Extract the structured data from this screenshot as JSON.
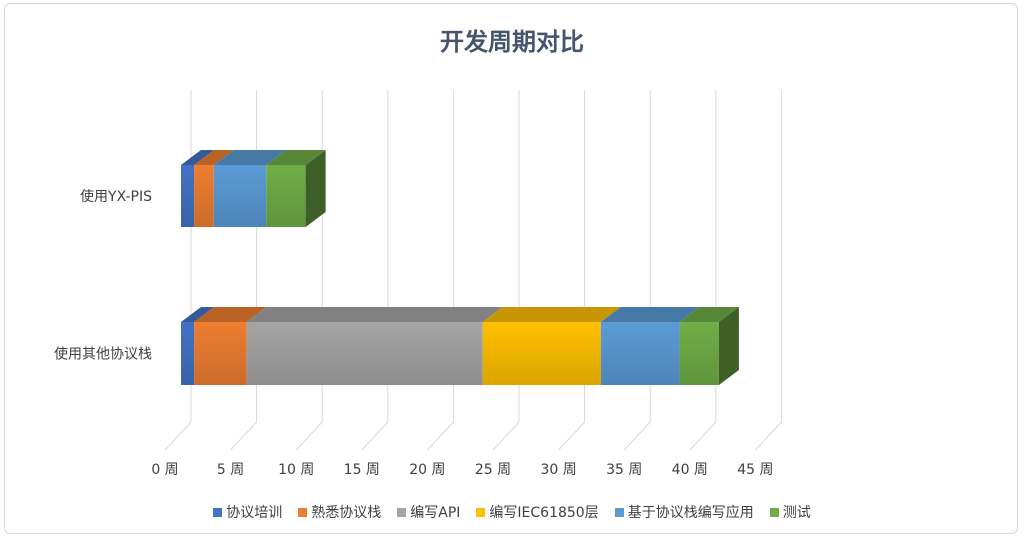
{
  "chart_data": {
    "type": "bar",
    "orientation": "horizontal",
    "stacked": true,
    "style": "3d",
    "title": "开发周期对比",
    "categories": [
      "使用YX-PIS",
      "使用其他协议栈"
    ],
    "xlim": [
      0,
      45
    ],
    "ticks": [
      0,
      5,
      10,
      15,
      20,
      25,
      30,
      35,
      40,
      45
    ],
    "tick_unit": "周",
    "grid": true,
    "legend_position": "bottom",
    "series": [
      {
        "name": "协议培训",
        "color": "#4472c4",
        "values": [
          1,
          1
        ]
      },
      {
        "name": "熟悉协议栈",
        "color": "#ed7d31",
        "values": [
          1.5,
          4
        ]
      },
      {
        "name": "编写API",
        "color": "#a5a5a5",
        "values": [
          0,
          18
        ]
      },
      {
        "name": "编写IEC61850层",
        "color": "#ffc000",
        "values": [
          0,
          9
        ]
      },
      {
        "name": "基于协议栈编写应用",
        "color": "#5b9bd5",
        "values": [
          4,
          6
        ]
      },
      {
        "name": "测试",
        "color": "#70ad47",
        "values": [
          3,
          3
        ]
      }
    ]
  }
}
